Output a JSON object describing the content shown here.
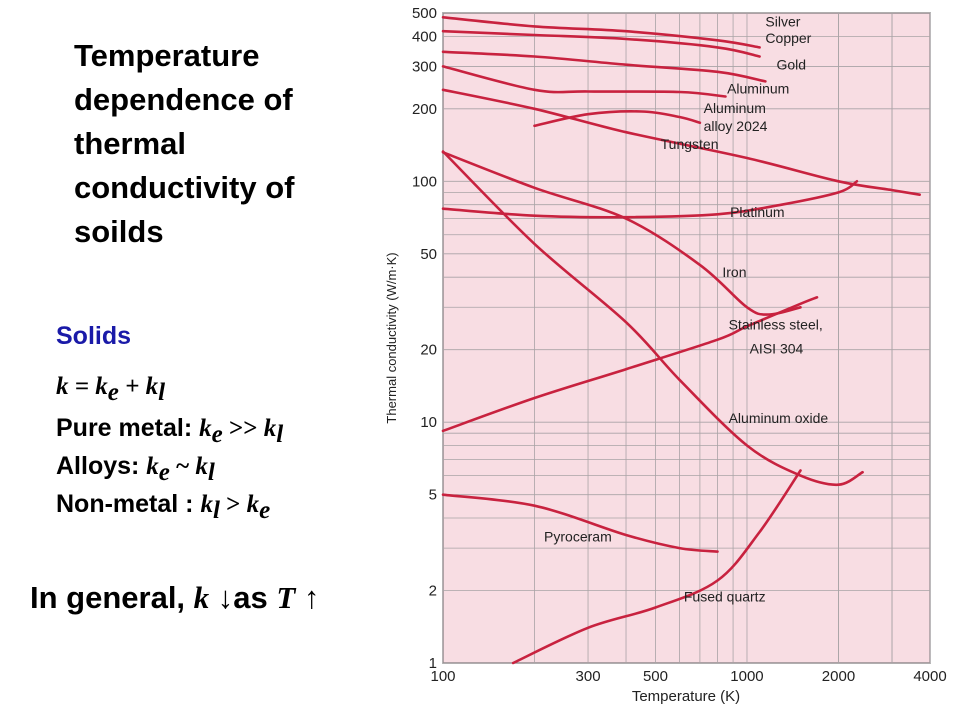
{
  "slide": {
    "title_lines": [
      "Temperature",
      "dependence of",
      "thermal",
      "conductivity of",
      "soilds"
    ],
    "solids_heading": "Solids",
    "eq_k": "k = k",
    "eq_sub_e": "e",
    "eq_plus": " + k",
    "eq_sub_l": "l",
    "pure_label": "Pure metal: ",
    "pure_k": "k",
    "pure_sub_e": "e",
    "pure_rel": " >> ",
    "pure_k2": "k",
    "pure_sub_l": "l",
    "alloys_label": "Alloys: ",
    "alloys_k": "k",
    "alloys_sub_e": "e",
    "alloys_rel": " ~ ",
    "alloys_k2": "k",
    "alloys_sub_l": "l",
    "nonmetal_label": "Non-metal : ",
    "nonmetal_k": "k",
    "nonmetal_sub_l": "l",
    "nonmetal_rel": " > ",
    "nonmetal_k2": "k",
    "nonmetal_sub_e": "e",
    "general_label": "In general, ",
    "general_k": "k",
    "general_down": " ↓",
    "general_as": "as ",
    "general_T": "T",
    "general_up": " ↑"
  },
  "chart_data": {
    "type": "line",
    "xlabel": "Temperature (K)",
    "ylabel": "Thermal conductivity (W/m·K)",
    "x_scale": "log",
    "y_scale": "log",
    "xlim": [
      100,
      4000
    ],
    "ylim": [
      1,
      500
    ],
    "x_ticks": [
      100,
      300,
      500,
      1000,
      2000,
      4000
    ],
    "y_ticks": [
      1,
      2,
      5,
      10,
      20,
      50,
      100,
      200,
      300,
      400,
      500
    ],
    "grid": true,
    "series": [
      {
        "name": "Silver",
        "points": [
          [
            100,
            480
          ],
          [
            200,
            440
          ],
          [
            400,
            420
          ],
          [
            800,
            385
          ],
          [
            1100,
            360
          ]
        ]
      },
      {
        "name": "Copper",
        "points": [
          [
            100,
            420
          ],
          [
            200,
            405
          ],
          [
            400,
            390
          ],
          [
            800,
            360
          ],
          [
            1100,
            330
          ]
        ]
      },
      {
        "name": "Gold",
        "points": [
          [
            100,
            345
          ],
          [
            200,
            330
          ],
          [
            400,
            305
          ],
          [
            800,
            285
          ],
          [
            1150,
            260
          ]
        ]
      },
      {
        "name": "Aluminum",
        "points": [
          [
            100,
            300
          ],
          [
            200,
            240
          ],
          [
            300,
            236
          ],
          [
            600,
            235
          ],
          [
            850,
            225
          ]
        ]
      },
      {
        "name": "Aluminum alloy 2024",
        "points": [
          [
            200,
            170
          ],
          [
            300,
            190
          ],
          [
            450,
            195
          ],
          [
            600,
            185
          ],
          [
            700,
            175
          ]
        ]
      },
      {
        "name": "Tungsten",
        "points": [
          [
            100,
            240
          ],
          [
            200,
            200
          ],
          [
            400,
            160
          ],
          [
            1000,
            125
          ],
          [
            2000,
            100
          ],
          [
            3000,
            92
          ],
          [
            3700,
            88
          ]
        ]
      },
      {
        "name": "Platinum",
        "points": [
          [
            100,
            77
          ],
          [
            200,
            72
          ],
          [
            400,
            71
          ],
          [
            800,
            73
          ],
          [
            1300,
            80
          ],
          [
            2000,
            90
          ],
          [
            2300,
            100
          ]
        ]
      },
      {
        "name": "Iron",
        "points": [
          [
            100,
            132
          ],
          [
            200,
            94
          ],
          [
            400,
            70
          ],
          [
            700,
            45
          ],
          [
            1000,
            30
          ],
          [
            1180,
            28
          ],
          [
            1500,
            30
          ]
        ]
      },
      {
        "name": "Stainless steel, AISI 304",
        "points": [
          [
            100,
            9.2
          ],
          [
            200,
            12.6
          ],
          [
            400,
            16.6
          ],
          [
            800,
            22
          ],
          [
            1000,
            25
          ],
          [
            1500,
            31
          ],
          [
            1700,
            33
          ]
        ]
      },
      {
        "name": "Aluminum oxide",
        "points": [
          [
            100,
            133
          ],
          [
            200,
            55
          ],
          [
            400,
            26
          ],
          [
            600,
            15
          ],
          [
            1000,
            8
          ],
          [
            1500,
            6
          ],
          [
            2000,
            5.5
          ],
          [
            2400,
            6.2
          ]
        ]
      },
      {
        "name": "Pyroceram",
        "points": [
          [
            100,
            5.0
          ],
          [
            200,
            4.5
          ],
          [
            400,
            3.4
          ],
          [
            600,
            3.0
          ],
          [
            800,
            2.9
          ]
        ]
      },
      {
        "name": "Fused quartz",
        "points": [
          [
            170,
            1.0
          ],
          [
            300,
            1.4
          ],
          [
            500,
            1.7
          ],
          [
            800,
            2.2
          ],
          [
            1100,
            3.5
          ],
          [
            1500,
            6.3
          ]
        ]
      }
    ]
  }
}
